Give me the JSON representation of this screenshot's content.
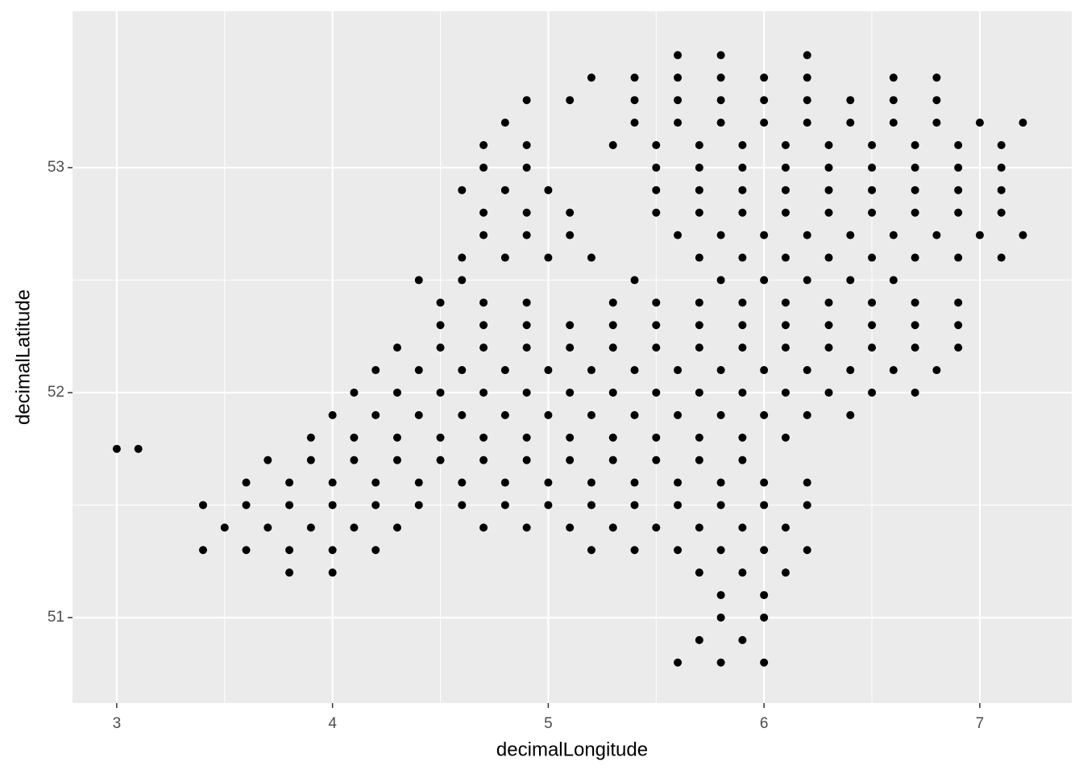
{
  "chart_data": {
    "type": "scatter",
    "x_label": "decimalLongitude",
    "y_label": "decimalLatitude",
    "xlim": [
      2.795,
      7.426
    ],
    "ylim": [
      50.62,
      53.695
    ],
    "xticks": [
      3,
      4,
      5,
      6,
      7
    ],
    "yticks": [
      51,
      52,
      53
    ],
    "xminor": [
      3.5,
      4.5,
      5.5,
      6.5
    ],
    "yminor": [
      51.5,
      52.5
    ],
    "grid": true,
    "color": "#000000",
    "x": [
      5.6,
      5.8,
      6.2,
      5.2,
      5.4,
      5.6,
      5.8,
      6.0,
      6.2,
      6.6,
      6.8,
      4.9,
      5.1,
      5.4,
      5.6,
      5.8,
      6.0,
      6.2,
      6.4,
      6.6,
      6.8,
      4.8,
      5.4,
      5.6,
      5.8,
      6.0,
      6.2,
      6.4,
      6.6,
      6.8,
      7.0,
      7.2,
      4.7,
      4.9,
      5.3,
      5.5,
      5.7,
      5.9,
      6.1,
      6.3,
      6.5,
      6.7,
      6.9,
      7.1,
      4.7,
      4.9,
      5.5,
      5.7,
      5.9,
      6.1,
      6.3,
      6.5,
      6.7,
      6.9,
      7.1,
      4.6,
      4.8,
      5.0,
      5.5,
      5.7,
      5.9,
      6.1,
      6.3,
      6.5,
      6.7,
      6.9,
      7.1,
      4.7,
      4.9,
      5.1,
      5.5,
      5.7,
      5.9,
      6.1,
      6.3,
      6.5,
      6.7,
      6.9,
      7.1,
      4.7,
      4.9,
      5.1,
      5.6,
      5.8,
      6.0,
      6.2,
      6.4,
      6.6,
      6.8,
      7.0,
      7.2,
      4.6,
      4.8,
      5.0,
      5.2,
      5.7,
      5.9,
      6.1,
      6.3,
      6.5,
      6.7,
      6.9,
      7.1,
      4.4,
      4.6,
      5.4,
      5.8,
      6.0,
      6.2,
      6.4,
      6.6,
      4.5,
      4.7,
      4.9,
      5.3,
      5.5,
      5.7,
      5.9,
      6.1,
      6.3,
      6.5,
      6.7,
      6.9,
      4.5,
      4.7,
      4.9,
      5.1,
      5.3,
      5.5,
      5.7,
      5.9,
      6.1,
      6.3,
      6.5,
      6.7,
      6.9,
      4.3,
      4.5,
      4.7,
      4.9,
      5.1,
      5.3,
      5.5,
      5.7,
      5.9,
      6.1,
      6.3,
      6.5,
      6.7,
      6.9,
      4.2,
      4.4,
      4.6,
      4.8,
      5.0,
      5.2,
      5.4,
      5.6,
      5.8,
      6.0,
      6.2,
      6.4,
      6.6,
      6.8,
      4.1,
      4.3,
      4.5,
      4.7,
      4.9,
      5.1,
      5.3,
      5.5,
      5.7,
      5.9,
      6.1,
      6.3,
      6.5,
      6.7,
      4.0,
      4.2,
      4.4,
      4.6,
      4.8,
      5.0,
      5.2,
      5.4,
      5.6,
      5.8,
      6.0,
      6.2,
      6.4,
      3.9,
      4.1,
      4.3,
      4.5,
      4.7,
      4.9,
      5.1,
      5.3,
      5.5,
      5.7,
      5.9,
      6.1,
      3.7,
      3.9,
      4.1,
      4.3,
      4.5,
      4.7,
      4.9,
      5.1,
      5.3,
      5.5,
      5.7,
      5.9,
      3.6,
      3.8,
      4.0,
      4.2,
      4.4,
      4.6,
      4.8,
      5.0,
      5.2,
      5.4,
      5.6,
      5.8,
      6.0,
      6.2,
      3.4,
      3.6,
      3.8,
      4.0,
      4.2,
      4.4,
      4.6,
      4.8,
      5.0,
      5.2,
      5.4,
      5.6,
      5.8,
      6.0,
      6.2,
      3.5,
      3.7,
      3.9,
      4.1,
      4.3,
      4.7,
      4.9,
      5.1,
      5.3,
      5.5,
      5.7,
      5.9,
      6.1,
      3.4,
      3.6,
      3.8,
      4.0,
      4.2,
      5.2,
      5.4,
      5.6,
      5.8,
      6.0,
      6.2,
      3.8,
      4.0,
      5.7,
      5.9,
      6.1,
      5.8,
      6.0,
      5.8,
      6.0,
      5.7,
      5.9,
      5.6,
      5.8,
      6.0,
      3.0,
      3.1
    ],
    "values": [
      53.5,
      53.5,
      53.5,
      53.4,
      53.4,
      53.4,
      53.4,
      53.4,
      53.4,
      53.4,
      53.4,
      53.3,
      53.3,
      53.3,
      53.3,
      53.3,
      53.3,
      53.3,
      53.3,
      53.3,
      53.3,
      53.2,
      53.2,
      53.2,
      53.2,
      53.2,
      53.2,
      53.2,
      53.2,
      53.2,
      53.2,
      53.2,
      53.1,
      53.1,
      53.1,
      53.1,
      53.1,
      53.1,
      53.1,
      53.1,
      53.1,
      53.1,
      53.1,
      53.1,
      53.0,
      53.0,
      53.0,
      53.0,
      53.0,
      53.0,
      53.0,
      53.0,
      53.0,
      53.0,
      53.0,
      52.9,
      52.9,
      52.9,
      52.9,
      52.9,
      52.9,
      52.9,
      52.9,
      52.9,
      52.9,
      52.9,
      52.9,
      52.8,
      52.8,
      52.8,
      52.8,
      52.8,
      52.8,
      52.8,
      52.8,
      52.8,
      52.8,
      52.8,
      52.8,
      52.7,
      52.7,
      52.7,
      52.7,
      52.7,
      52.7,
      52.7,
      52.7,
      52.7,
      52.7,
      52.7,
      52.7,
      52.6,
      52.6,
      52.6,
      52.6,
      52.6,
      52.6,
      52.6,
      52.6,
      52.6,
      52.6,
      52.6,
      52.6,
      52.5,
      52.5,
      52.5,
      52.5,
      52.5,
      52.5,
      52.5,
      52.5,
      52.4,
      52.4,
      52.4,
      52.4,
      52.4,
      52.4,
      52.4,
      52.4,
      52.4,
      52.4,
      52.4,
      52.4,
      52.3,
      52.3,
      52.3,
      52.3,
      52.3,
      52.3,
      52.3,
      52.3,
      52.3,
      52.3,
      52.3,
      52.3,
      52.3,
      52.2,
      52.2,
      52.2,
      52.2,
      52.2,
      52.2,
      52.2,
      52.2,
      52.2,
      52.2,
      52.2,
      52.2,
      52.2,
      52.2,
      52.1,
      52.1,
      52.1,
      52.1,
      52.1,
      52.1,
      52.1,
      52.1,
      52.1,
      52.1,
      52.1,
      52.1,
      52.1,
      52.1,
      52.0,
      52.0,
      52.0,
      52.0,
      52.0,
      52.0,
      52.0,
      52.0,
      52.0,
      52.0,
      52.0,
      52.0,
      52.0,
      52.0,
      51.9,
      51.9,
      51.9,
      51.9,
      51.9,
      51.9,
      51.9,
      51.9,
      51.9,
      51.9,
      51.9,
      51.9,
      51.9,
      51.8,
      51.8,
      51.8,
      51.8,
      51.8,
      51.8,
      51.8,
      51.8,
      51.8,
      51.8,
      51.8,
      51.8,
      51.7,
      51.7,
      51.7,
      51.7,
      51.7,
      51.7,
      51.7,
      51.7,
      51.7,
      51.7,
      51.7,
      51.7,
      51.6,
      51.6,
      51.6,
      51.6,
      51.6,
      51.6,
      51.6,
      51.6,
      51.6,
      51.6,
      51.6,
      51.6,
      51.6,
      51.6,
      51.5,
      51.5,
      51.5,
      51.5,
      51.5,
      51.5,
      51.5,
      51.5,
      51.5,
      51.5,
      51.5,
      51.5,
      51.5,
      51.5,
      51.5,
      51.4,
      51.4,
      51.4,
      51.4,
      51.4,
      51.4,
      51.4,
      51.4,
      51.4,
      51.4,
      51.4,
      51.4,
      51.4,
      51.3,
      51.3,
      51.3,
      51.3,
      51.3,
      51.3,
      51.3,
      51.3,
      51.3,
      51.3,
      51.3,
      51.2,
      51.2,
      51.2,
      51.2,
      51.2,
      51.1,
      51.1,
      51.0,
      51.0,
      50.9,
      50.9,
      50.8,
      50.8,
      50.8,
      51.75,
      51.75
    ]
  }
}
